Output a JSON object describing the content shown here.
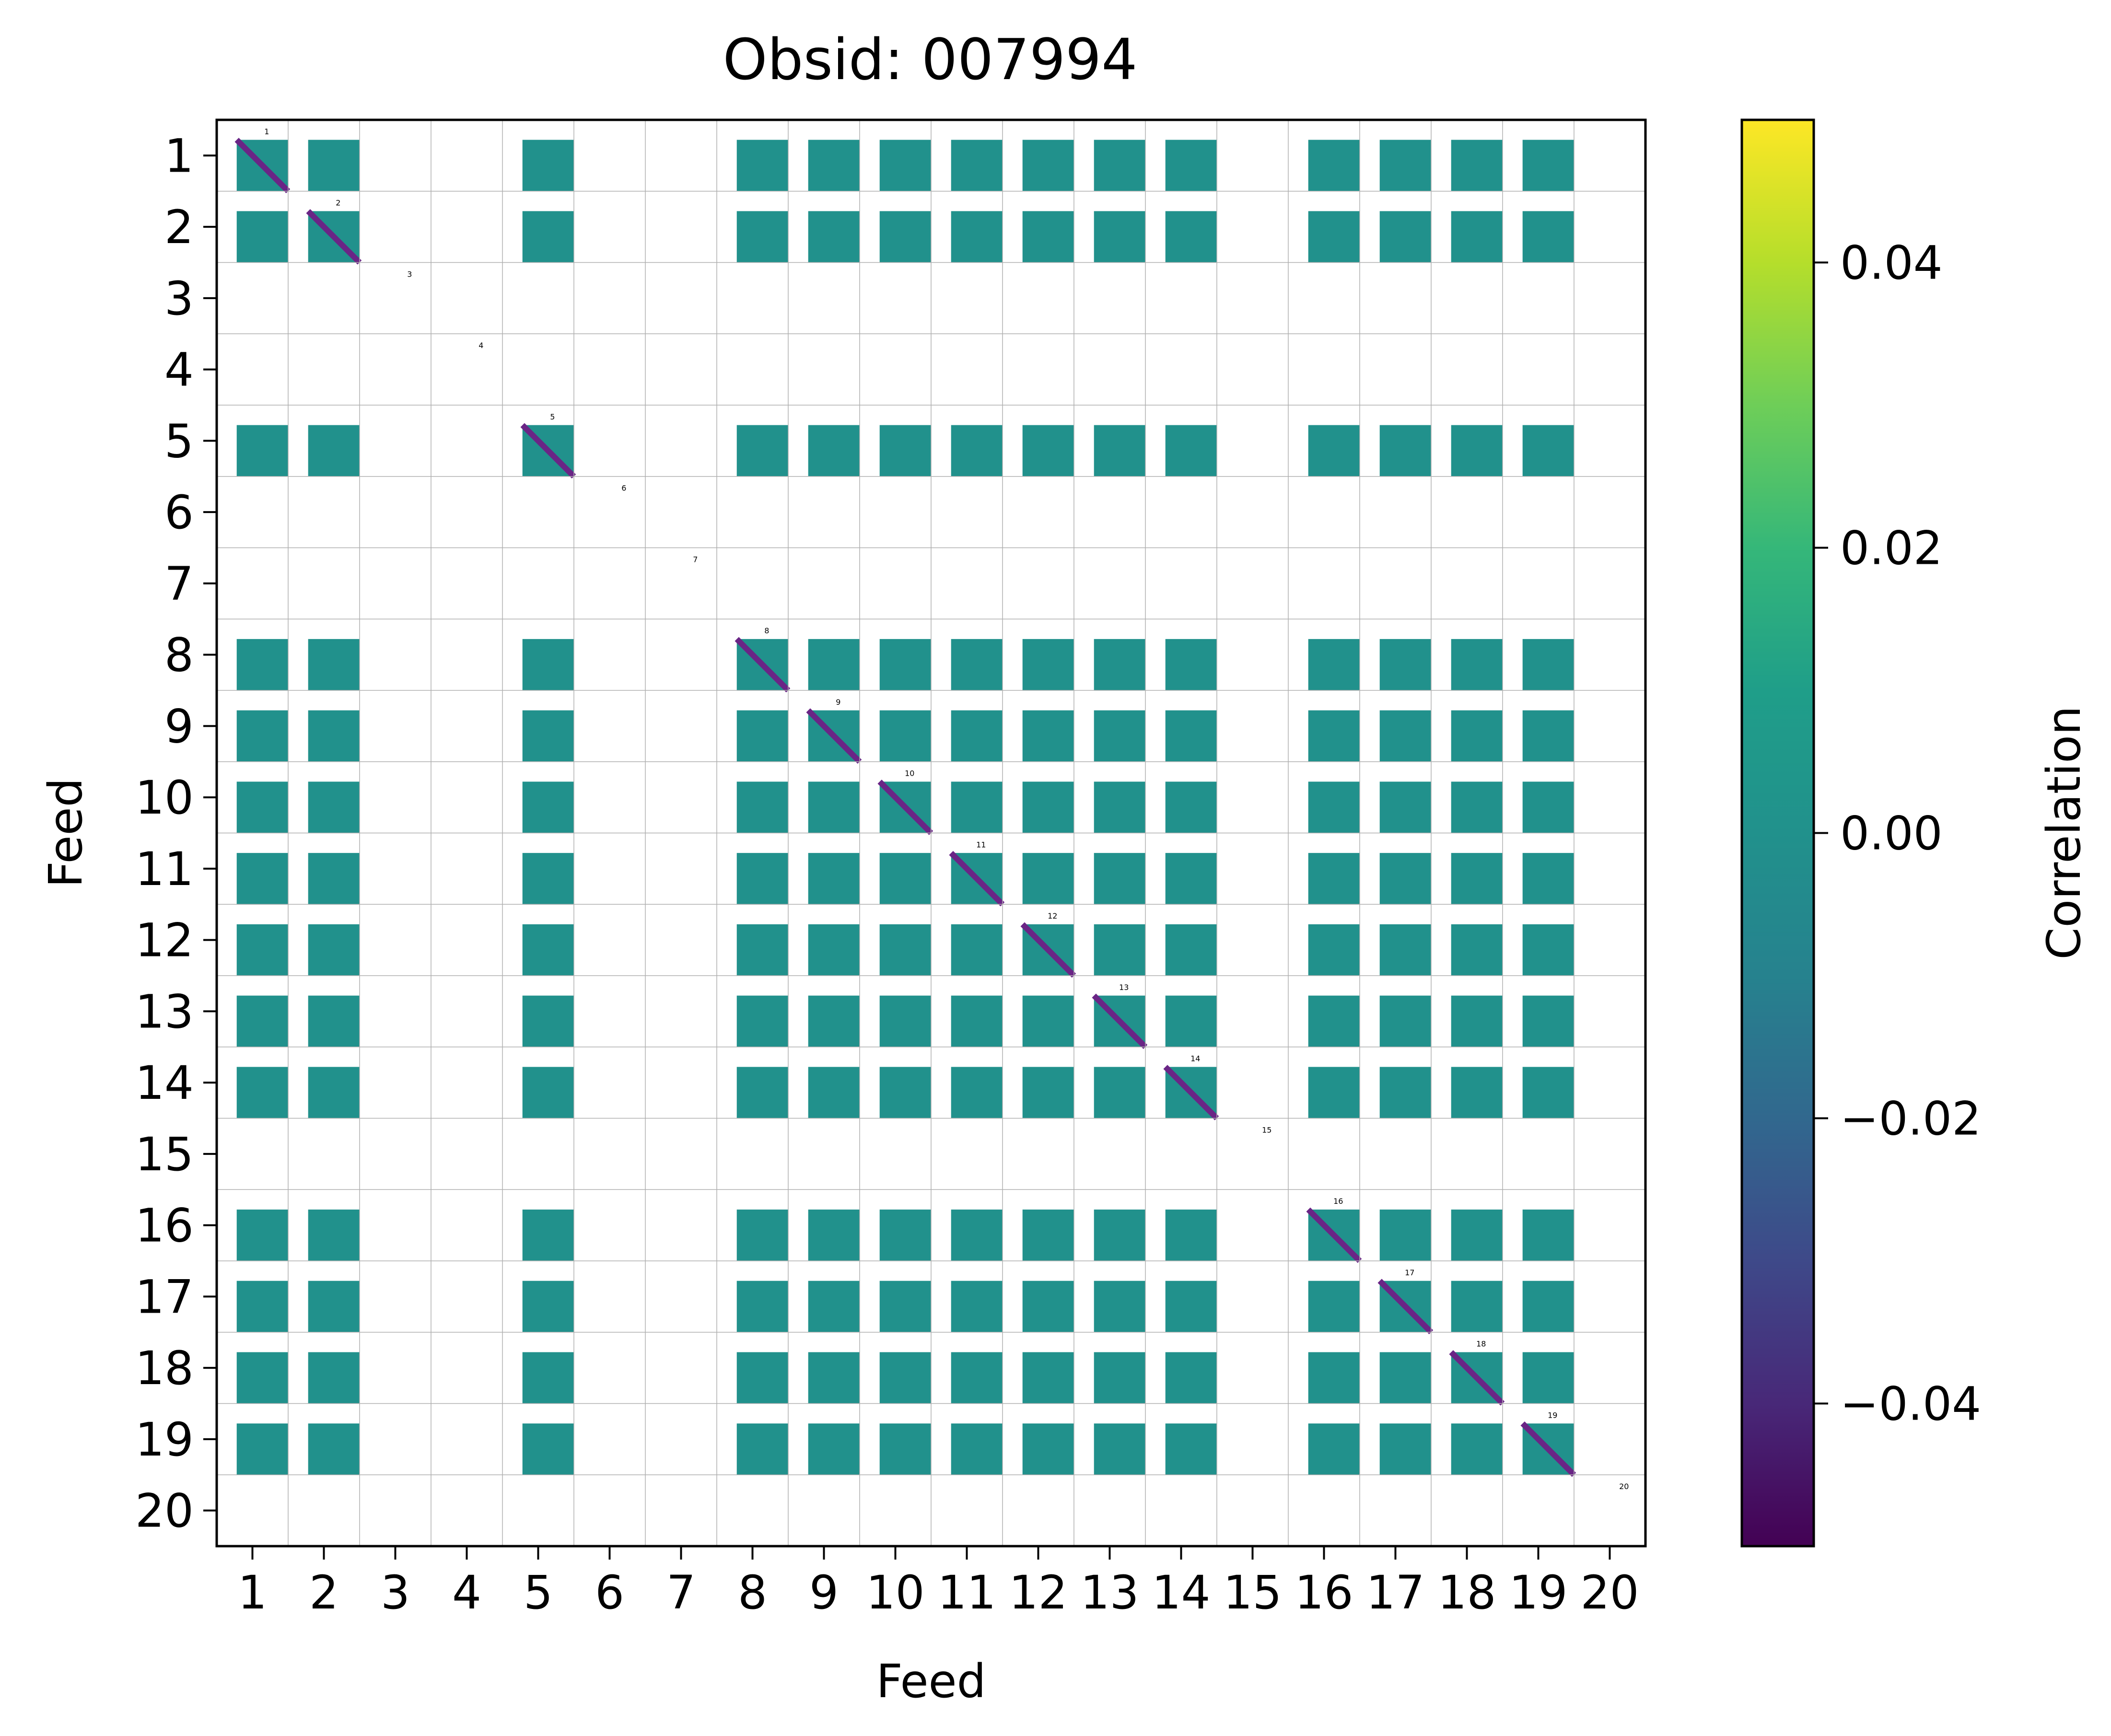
{
  "chart_data": {
    "type": "heatmap",
    "title": "Obsid: 007994",
    "xlabel": "Feed",
    "ylabel": "Feed",
    "feeds": [
      "1",
      "2",
      "3",
      "4",
      "5",
      "6",
      "7",
      "8",
      "9",
      "10",
      "11",
      "12",
      "13",
      "14",
      "15",
      "16",
      "17",
      "18",
      "19",
      "20"
    ],
    "feed_labels": [
      "1",
      "2",
      "3",
      "4",
      "5",
      "6",
      "7",
      "8",
      "9",
      "10",
      "11",
      "12",
      "13",
      "14",
      "15",
      "16",
      "17",
      "18",
      "19",
      "20"
    ],
    "x_tick_labels": [
      "1",
      "2",
      "3",
      "4",
      "5",
      "6",
      "7",
      "8",
      "9",
      "10",
      "11",
      "12",
      "13",
      "14",
      "15",
      "16",
      "17",
      "18",
      "19",
      "20"
    ],
    "y_tick_labels": [
      "1",
      "2",
      "3",
      "4",
      "5",
      "6",
      "7",
      "8",
      "9",
      "10",
      "11",
      "12",
      "13",
      "14",
      "15",
      "16",
      "17",
      "18",
      "19",
      "20"
    ],
    "active_feeds": [
      1,
      2,
      5,
      8,
      9,
      10,
      11,
      12,
      13,
      14,
      16,
      17,
      18,
      19
    ],
    "inactive_feeds": [
      3,
      4,
      6,
      7,
      15,
      20
    ],
    "offdiagonal_value": 0.0,
    "diagonal_value": -0.05,
    "colorbar": {
      "label": "Correlation",
      "colormap": "viridis",
      "range": [
        -0.05,
        0.05
      ],
      "ticks": [
        {
          "value": 0.04,
          "label": "0.04"
        },
        {
          "value": 0.02,
          "label": "0.02"
        },
        {
          "value": 0.0,
          "label": "0.00"
        },
        {
          "value": -0.02,
          "label": "−0.02"
        },
        {
          "value": -0.04,
          "label": "−0.04"
        }
      ]
    },
    "colors": {
      "zero": "#21918c",
      "diag": "#6a2586",
      "grid": "#b0b0b0",
      "frame": "#000000"
    }
  }
}
